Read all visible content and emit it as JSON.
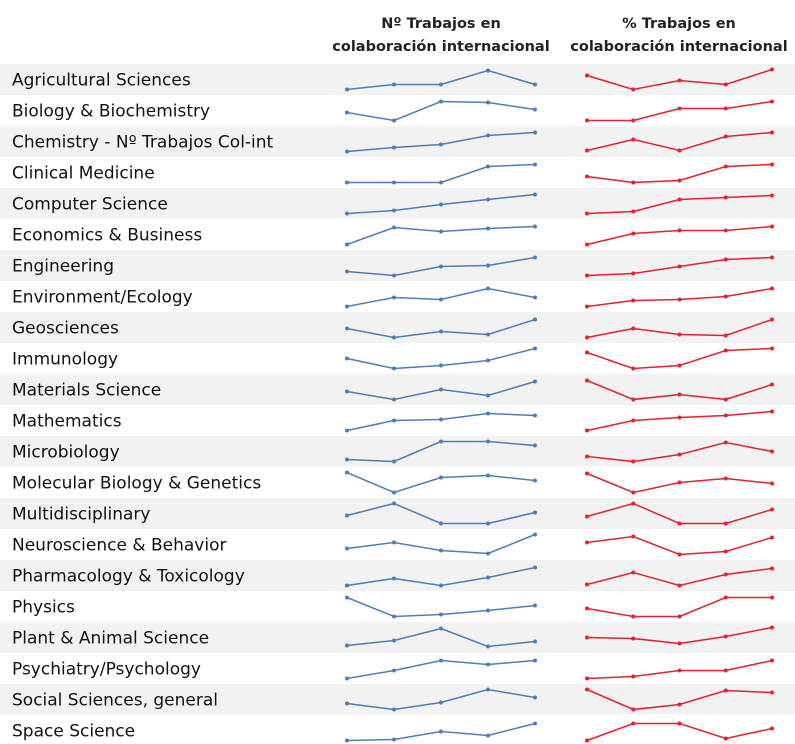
{
  "headers": {
    "count": [
      "Nº Trabajos en",
      "colaboración internacional"
    ],
    "percent": [
      "% Trabajos en",
      "colaboración internacional"
    ]
  },
  "rows": [
    {
      "label": "Agricultural Sciences",
      "count_trend": [
        0,
        2.5,
        2.5,
        9.5,
        2.5
      ],
      "percent_trend": [
        7,
        0,
        4.5,
        2.5,
        10
      ]
    },
    {
      "label": "Biology & Biochemistry",
      "count_trend": [
        4,
        0,
        9.5,
        9,
        5.5
      ],
      "percent_trend": [
        0,
        0,
        6,
        6,
        9.5
      ]
    },
    {
      "label": "Chemistry - Nº Trabajos Col-int",
      "count_trend": [
        0,
        2,
        3.5,
        8,
        9.5
      ],
      "percent_trend": [
        0.5,
        6,
        0.5,
        7.5,
        9.5
      ]
    },
    {
      "label": "Clinical Medicine",
      "count_trend": [
        0,
        0,
        0,
        8,
        9
      ],
      "percent_trend": [
        3,
        0,
        1,
        8,
        9
      ]
    },
    {
      "label": "Computer Science",
      "count_trend": [
        0,
        1.5,
        4.5,
        7,
        9.5
      ],
      "percent_trend": [
        0,
        1,
        7,
        8,
        9
      ]
    },
    {
      "label": "Economics & Business",
      "count_trend": [
        0,
        8.5,
        6.5,
        8,
        9
      ],
      "percent_trend": [
        0,
        5.5,
        7,
        7,
        9
      ]
    },
    {
      "label": "Engineering",
      "count_trend": [
        2,
        0,
        4.5,
        5,
        9
      ],
      "percent_trend": [
        0,
        1,
        4.5,
        8,
        9
      ]
    },
    {
      "label": "Environment/Ecology",
      "count_trend": [
        0,
        4.5,
        3.5,
        9,
        4.5
      ],
      "percent_trend": [
        0,
        3,
        3.5,
        5,
        9
      ]
    },
    {
      "label": "Geosciences",
      "count_trend": [
        4.5,
        0,
        3,
        1.5,
        9
      ],
      "percent_trend": [
        0,
        4.5,
        1.5,
        1,
        9
      ]
    },
    {
      "label": "Immunology",
      "count_trend": [
        5,
        0,
        1.5,
        4,
        10
      ],
      "percent_trend": [
        8,
        0,
        1.5,
        9,
        10
      ]
    },
    {
      "label": "Materials Science",
      "count_trend": [
        4,
        0,
        5,
        2,
        9
      ],
      "percent_trend": [
        9.5,
        0,
        2.5,
        0,
        7.5
      ]
    },
    {
      "label": "Mathematics",
      "count_trend": [
        0,
        5,
        5.5,
        8.5,
        7.5
      ],
      "percent_trend": [
        0,
        5,
        6.5,
        7.5,
        9.5
      ]
    },
    {
      "label": "Microbiology",
      "count_trend": [
        1,
        0,
        10,
        10,
        8
      ],
      "percent_trend": [
        2.5,
        0,
        3.5,
        9.5,
        5
      ]
    },
    {
      "label": "Molecular Biology & Genetics",
      "count_trend": [
        10,
        0,
        7.5,
        8.5,
        6
      ],
      "percent_trend": [
        9.5,
        0,
        5,
        7,
        4.5
      ]
    },
    {
      "label": "Multidisciplinary",
      "count_trend": [
        4,
        10,
        0,
        0,
        5.5
      ],
      "percent_trend": [
        3.5,
        10,
        0,
        0,
        7
      ]
    },
    {
      "label": "Neuroscience & Behavior",
      "count_trend": [
        3,
        6,
        2,
        0.5,
        10
      ],
      "percent_trend": [
        6,
        9,
        0,
        1.5,
        8.5
      ]
    },
    {
      "label": "Pharmacology & Toxicology",
      "count_trend": [
        0,
        3.5,
        0,
        4,
        9
      ],
      "percent_trend": [
        0.5,
        6.5,
        0,
        5.5,
        8.5
      ]
    },
    {
      "label": "Physics",
      "count_trend": [
        9.5,
        0,
        1,
        3,
        5.5
      ],
      "percent_trend": [
        4,
        0,
        0,
        9.5,
        9.5
      ]
    },
    {
      "label": "Plant & Animal Science",
      "count_trend": [
        1,
        3.5,
        9.5,
        0.5,
        3
      ],
      "percent_trend": [
        5,
        4.5,
        2,
        5.5,
        10
      ]
    },
    {
      "label": "Psychiatry/Psychology",
      "count_trend": [
        0,
        4,
        9,
        7,
        9
      ],
      "percent_trend": [
        0,
        1,
        4,
        4,
        9
      ]
    },
    {
      "label": "Social Sciences, general",
      "count_trend": [
        3,
        0,
        3.5,
        10,
        6
      ],
      "percent_trend": [
        10,
        0,
        2.5,
        9.5,
        8.5
      ]
    },
    {
      "label": "Space Science",
      "count_trend": [
        0,
        0.5,
        4.5,
        2.5,
        8.5
      ],
      "percent_trend": [
        0,
        8.5,
        8.5,
        1,
        6
      ]
    }
  ]
}
